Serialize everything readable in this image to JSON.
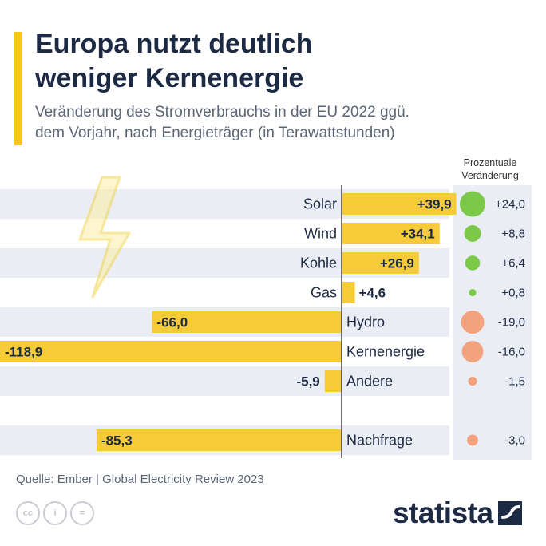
{
  "header": {
    "title_line1": "Europa nutzt deutlich",
    "title_line2": "weniger Kernenergie",
    "subtitle_line1": "Veränderung des Stromverbrauchs in der EU 2022 ggü.",
    "subtitle_line2": "dem Vorjahr, nach Energieträger (in Terawattstunden)",
    "pct_header_line1": "Prozentuale",
    "pct_header_line2": "Veränderung"
  },
  "chart_data": {
    "type": "bar",
    "orientation": "horizontal",
    "unit": "TWh",
    "categories": [
      "Solar",
      "Wind",
      "Kohle",
      "Gas",
      "Hydro",
      "Kernenergie",
      "Andere",
      "Nachfrage"
    ],
    "values": [
      39.9,
      34.1,
      26.9,
      4.6,
      -66.0,
      -118.9,
      -5.9,
      -85.3
    ],
    "value_labels": [
      "+39,9",
      "+34,1",
      "+26,9",
      "+4,6",
      "-66,0",
      "-118,9",
      "-5,9",
      "-85,3"
    ],
    "percent_change": [
      24.0,
      8.8,
      6.4,
      0.8,
      -19.0,
      -16.0,
      -1.5,
      -3.0
    ],
    "percent_labels": [
      "+24,0",
      "+8,8",
      "+6,4",
      "+0,8",
      "-19,0",
      "-16,0",
      "-1,5",
      "-3,0"
    ],
    "xlim": [
      -118.9,
      39.9
    ],
    "legend": "none",
    "colors": {
      "bar": "#f5cb3a",
      "positive_bubble": "#7cc94a",
      "negative_bubble": "#f4a27e",
      "row_band": "#eaedf3",
      "zero_line": "#444444"
    }
  },
  "footer": {
    "source": "Quelle: Ember | Global Electricity Review 2023",
    "license_icons": [
      "cc-icon",
      "attribution-icon",
      "no-derivatives-icon"
    ],
    "license_labels": [
      "cc",
      "i",
      "="
    ],
    "brand": "statista"
  }
}
